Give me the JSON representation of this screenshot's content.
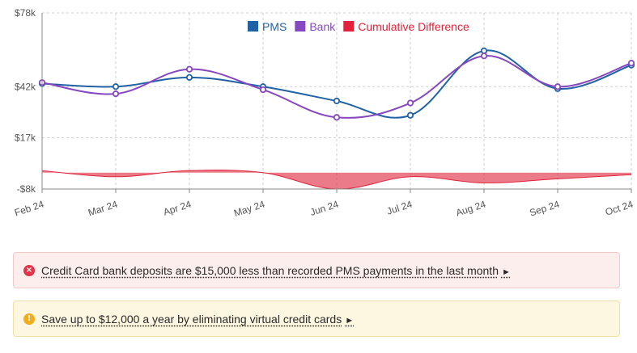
{
  "chart_data": {
    "type": "line",
    "categories": [
      "Feb 24",
      "Mar 24",
      "Apr 24",
      "May 24",
      "Jun 24",
      "Jul 24",
      "Aug 24",
      "Sep 24",
      "Oct 24"
    ],
    "ylim": [
      -8000,
      78000
    ],
    "y_ticks": [
      -8000,
      17000,
      42000,
      78000
    ],
    "y_tick_labels": [
      "-$8k",
      "$17k",
      "$42k",
      "$78k"
    ],
    "grid": true,
    "legend_position": "top",
    "series": [
      {
        "name": "PMS",
        "type": "line",
        "color": "#2162a6",
        "values": [
          43500,
          42000,
          46500,
          42000,
          35000,
          28000,
          59500,
          41000,
          52500
        ]
      },
      {
        "name": "Bank",
        "type": "line",
        "color": "#8747c0",
        "values": [
          44000,
          38500,
          50500,
          40500,
          27000,
          34000,
          57000,
          42000,
          53500
        ]
      },
      {
        "name": "Cumulative Difference",
        "type": "area",
        "color": "#e0233a",
        "values": [
          1000,
          -2000,
          1000,
          0,
          -8000,
          -2000,
          -5000,
          -3000,
          -1000
        ]
      }
    ]
  },
  "alerts": [
    {
      "type": "danger",
      "icon": "error-icon",
      "glyph": "×",
      "text": "Credit Card bank deposits are $15,000 less than recorded PMS payments in the last month",
      "arrow": "►"
    },
    {
      "type": "warning",
      "icon": "warning-icon",
      "glyph": "!",
      "text": "Save up to $12,000 a year by eliminating virtual credit cards",
      "arrow": "►"
    }
  ]
}
